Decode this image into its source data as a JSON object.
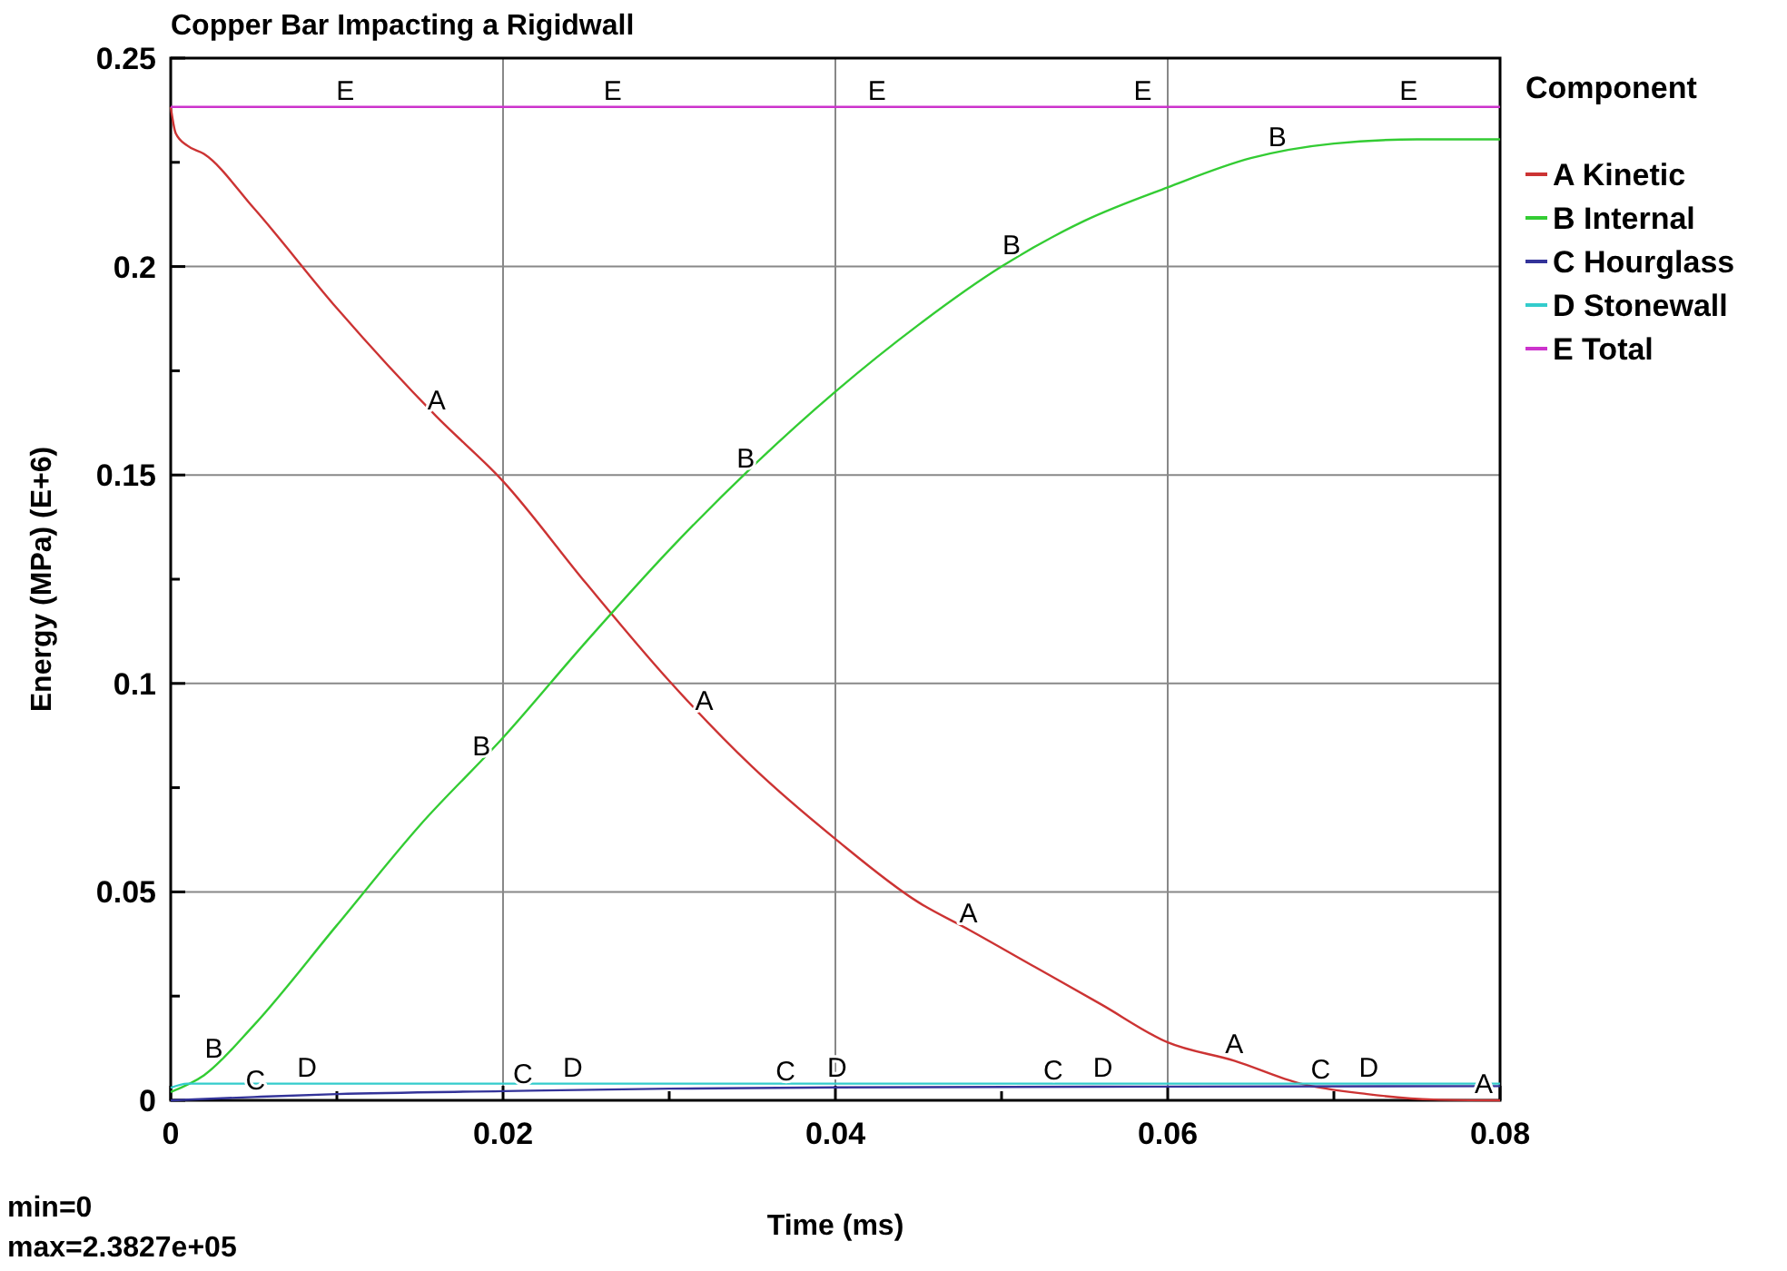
{
  "chart_data": {
    "type": "line",
    "title": "Copper Bar Impacting a Rigidwall",
    "xlabel": "Time (ms)",
    "ylabel": "Energy (MPa) (E+6)",
    "legend_title": "Component",
    "legend": "right",
    "grid": true,
    "marker": "none",
    "line_style": "solid",
    "xlim": [
      0,
      0.08
    ],
    "ylim": [
      0,
      0.25
    ],
    "xticks": [
      0,
      {
        "value": 0.01,
        "label": null
      },
      0.02,
      {
        "value": 0.03,
        "label": null
      },
      0.04,
      {
        "value": 0.05,
        "label": null
      },
      0.06,
      {
        "value": 0.07,
        "label": null
      },
      0.08
    ],
    "yticks": [
      0,
      {
        "value": 0.025,
        "label": null
      },
      0.05,
      {
        "value": 0.075,
        "label": null
      },
      0.1,
      {
        "value": 0.125,
        "label": null
      },
      0.15,
      {
        "value": 0.175,
        "label": null
      },
      0.2,
      {
        "value": 0.225,
        "label": null
      },
      0.25
    ],
    "series": [
      {
        "name": "A Kinetic",
        "color": "#cc3333",
        "x": [
          0,
          0.0003,
          0.001,
          0.002,
          0.005,
          0.01,
          0.016,
          0.02,
          0.025,
          0.03,
          0.035,
          0.04,
          0.045,
          0.048,
          0.052,
          0.056,
          0.06,
          0.064,
          0.068,
          0.072,
          0.076,
          0.08
        ],
        "values": [
          0.2383,
          0.232,
          0.229,
          0.227,
          0.214,
          0.19,
          0.164,
          0.1485,
          0.124,
          0.1006,
          0.08,
          0.0627,
          0.0475,
          0.041,
          0.032,
          0.023,
          0.0139,
          0.0095,
          0.004,
          0.0015,
          0.0002,
          0
        ]
      },
      {
        "name": "B Internal",
        "color": "#33cc33",
        "x": [
          0,
          0.002,
          0.005,
          0.01,
          0.015,
          0.02,
          0.025,
          0.03,
          0.035,
          0.04,
          0.045,
          0.05,
          0.055,
          0.06,
          0.065,
          0.07,
          0.075,
          0.08
        ],
        "values": [
          0.002,
          0.006,
          0.018,
          0.042,
          0.066,
          0.087,
          0.11,
          0.132,
          0.152,
          0.17,
          0.186,
          0.2,
          0.211,
          0.219,
          0.226,
          0.2295,
          0.2305,
          0.2305
        ]
      },
      {
        "name": "C Hourglass",
        "color": "#333399",
        "x": [
          0,
          0.005,
          0.01,
          0.02,
          0.03,
          0.04,
          0.06,
          0.08
        ],
        "values": [
          0,
          0.0008,
          0.0015,
          0.0022,
          0.0028,
          0.0031,
          0.0033,
          0.0034
        ]
      },
      {
        "name": "D Stonewall",
        "color": "#33cccc",
        "x": [
          0,
          0.001,
          0.02,
          0.04,
          0.06,
          0.08
        ],
        "values": [
          0.003,
          0.004,
          0.004,
          0.004,
          0.004,
          0.004
        ]
      },
      {
        "name": "E Total",
        "color": "#cc33cc",
        "x": [
          0,
          0.04,
          0.08
        ],
        "values": [
          0.2383,
          0.2383,
          0.2383
        ]
      }
    ],
    "annotations": [
      {
        "text": "A",
        "x": 0.016,
        "y": 0.164
      },
      {
        "text": "A",
        "x": 0.0321,
        "y": 0.092
      },
      {
        "text": "A",
        "x": 0.048,
        "y": 0.041
      },
      {
        "text": "A",
        "x": 0.064,
        "y": 0.0095
      },
      {
        "text": "A",
        "x": 0.08,
        "y": 0
      },
      {
        "text": "B",
        "x": 0.0026,
        "y": 0.0084
      },
      {
        "text": "B",
        "x": 0.0187,
        "y": 0.081
      },
      {
        "text": "B",
        "x": 0.0346,
        "y": 0.15
      },
      {
        "text": "B",
        "x": 0.0506,
        "y": 0.2013
      },
      {
        "text": "B",
        "x": 0.0666,
        "y": 0.2271
      },
      {
        "text": "C",
        "x": 0.0051,
        "y": 0.0008
      },
      {
        "text": "C",
        "x": 0.0212,
        "y": 0.0023
      },
      {
        "text": "C",
        "x": 0.037,
        "y": 0.003
      },
      {
        "text": "C",
        "x": 0.0531,
        "y": 0.0032
      },
      {
        "text": "C",
        "x": 0.0692,
        "y": 0.0034
      },
      {
        "text": "D",
        "x": 0.0082,
        "y": 0.004
      },
      {
        "text": "D",
        "x": 0.0242,
        "y": 0.004
      },
      {
        "text": "D",
        "x": 0.0401,
        "y": 0.004
      },
      {
        "text": "D",
        "x": 0.0561,
        "y": 0.004
      },
      {
        "text": "D",
        "x": 0.0721,
        "y": 0.004
      },
      {
        "text": "E",
        "x": 0.0105,
        "y": 0.2383
      },
      {
        "text": "E",
        "x": 0.0266,
        "y": 0.2383
      },
      {
        "text": "E",
        "x": 0.0425,
        "y": 0.2383
      },
      {
        "text": "E",
        "x": 0.0585,
        "y": 0.2383
      },
      {
        "text": "E",
        "x": 0.0745,
        "y": 0.2383
      },
      "min=0",
      "max=2.3827e+05"
    ]
  }
}
